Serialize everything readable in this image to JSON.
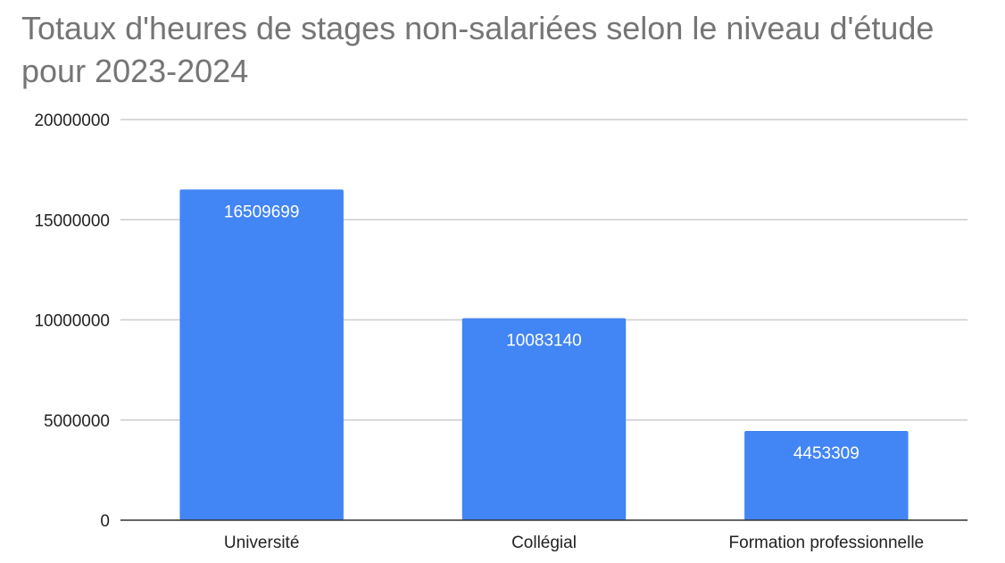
{
  "chart_data": {
    "type": "bar",
    "title": "Totaux d'heures de stages non-salariées selon le niveau d'étude pour 2023-2024",
    "categories": [
      "Université",
      "Collégial",
      "Formation professionnelle"
    ],
    "values": [
      16509699,
      10083140,
      4453309
    ],
    "data_labels": [
      "16509699",
      "10083140",
      "4453309"
    ],
    "xlabel": "",
    "ylabel": "",
    "ylim": [
      0,
      20000000
    ],
    "yticks": [
      0,
      5000000,
      10000000,
      15000000,
      20000000
    ],
    "ytick_labels": [
      "0",
      "5000000",
      "10000000",
      "15000000",
      "20000000"
    ],
    "grid": true,
    "legend": "none",
    "colors": {
      "bar": "#4285f4",
      "grid": "#cccccc",
      "baseline": "#333333",
      "title": "#757575"
    }
  }
}
